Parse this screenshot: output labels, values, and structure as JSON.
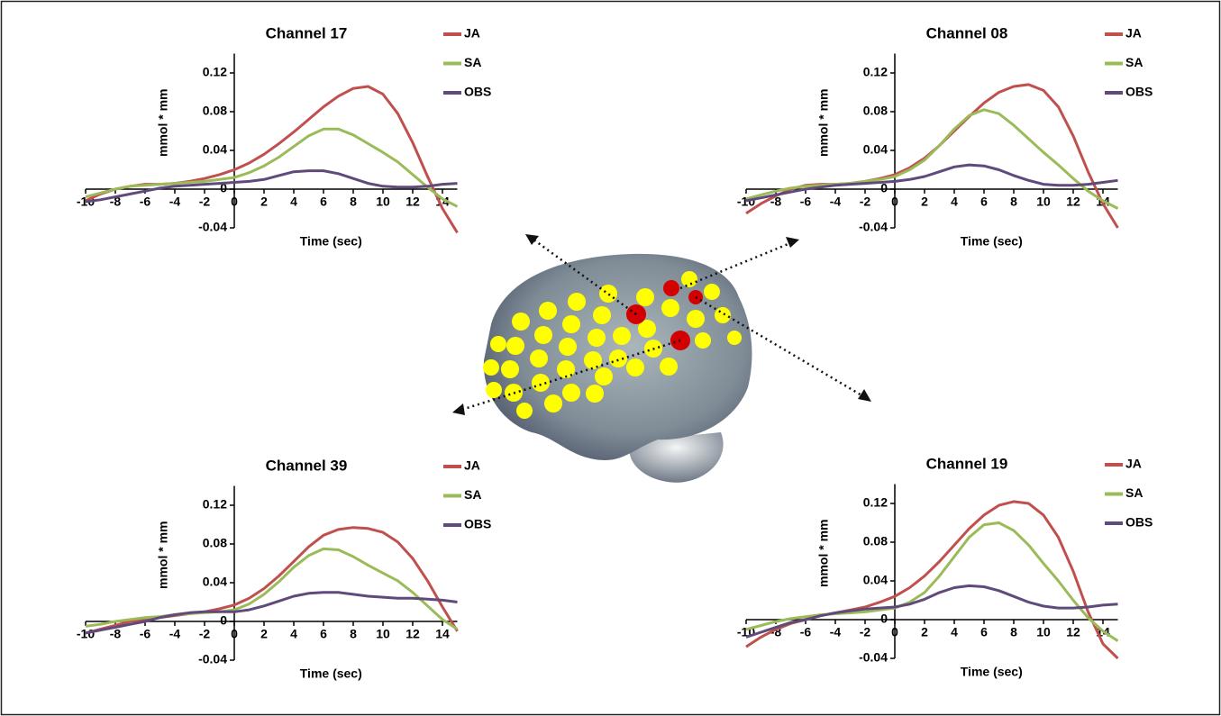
{
  "chart_data": [
    {
      "type": "line",
      "title": "Channel 17",
      "y_label": "mmol * mm",
      "x_label": "Time (sec)",
      "x": [
        -10,
        -9,
        -8,
        -7,
        -6,
        -5,
        -4,
        -3,
        -2,
        -1,
        0,
        1,
        2,
        3,
        4,
        5,
        6,
        7,
        8,
        9,
        10,
        11,
        12,
        13,
        14,
        15
      ],
      "xlim": [
        -10,
        15
      ],
      "xticks": [
        -10,
        -8,
        -6,
        -4,
        -2,
        0,
        2,
        4,
        6,
        8,
        10,
        12,
        14
      ],
      "ylim": [
        -0.04,
        0.14
      ],
      "yticks": [
        -0.04,
        0,
        0.04,
        0.08,
        0.12
      ],
      "series": [
        {
          "name": "JA",
          "color": "#c0504d",
          "values": [
            -0.012,
            -0.005,
            0.0,
            0.003,
            0.005,
            0.005,
            0.006,
            0.008,
            0.011,
            0.015,
            0.02,
            0.027,
            0.036,
            0.047,
            0.059,
            0.072,
            0.085,
            0.096,
            0.104,
            0.106,
            0.098,
            0.078,
            0.048,
            0.013,
            -0.02,
            -0.045
          ]
        },
        {
          "name": "SA",
          "color": "#9bbb59",
          "values": [
            -0.008,
            -0.004,
            0.0,
            0.003,
            0.004,
            0.005,
            0.006,
            0.007,
            0.008,
            0.01,
            0.012,
            0.017,
            0.024,
            0.033,
            0.044,
            0.055,
            0.062,
            0.062,
            0.056,
            0.047,
            0.038,
            0.028,
            0.015,
            0.002,
            -0.01,
            -0.018
          ]
        },
        {
          "name": "OBS",
          "color": "#604a7b",
          "values": [
            -0.013,
            -0.011,
            -0.008,
            -0.005,
            -0.002,
            0.001,
            0.003,
            0.004,
            0.005,
            0.006,
            0.007,
            0.008,
            0.01,
            0.014,
            0.018,
            0.019,
            0.019,
            0.016,
            0.011,
            0.006,
            0.003,
            0.002,
            0.002,
            0.003,
            0.005,
            0.006
          ]
        }
      ]
    },
    {
      "type": "line",
      "title": "Channel 08",
      "y_label": "mmol * mm",
      "x_label": "Time (sec)",
      "x": [
        -10,
        -9,
        -8,
        -7,
        -6,
        -5,
        -4,
        -3,
        -2,
        -1,
        0,
        1,
        2,
        3,
        4,
        5,
        6,
        7,
        8,
        9,
        10,
        11,
        12,
        13,
        14,
        15
      ],
      "xlim": [
        -10,
        15
      ],
      "xticks": [
        -10,
        -8,
        -6,
        -4,
        -2,
        0,
        2,
        4,
        6,
        8,
        10,
        12,
        14
      ],
      "ylim": [
        -0.04,
        0.14
      ],
      "yticks": [
        -0.04,
        0,
        0.04,
        0.08,
        0.12
      ],
      "series": [
        {
          "name": "JA",
          "color": "#c0504d",
          "values": [
            -0.025,
            -0.015,
            -0.007,
            0.0,
            0.004,
            0.005,
            0.005,
            0.006,
            0.008,
            0.011,
            0.015,
            0.022,
            0.032,
            0.045,
            0.06,
            0.075,
            0.089,
            0.1,
            0.106,
            0.108,
            0.102,
            0.085,
            0.055,
            0.018,
            -0.015,
            -0.04
          ]
        },
        {
          "name": "SA",
          "color": "#9bbb59",
          "values": [
            -0.01,
            -0.006,
            -0.002,
            0.001,
            0.003,
            0.004,
            0.005,
            0.006,
            0.008,
            0.01,
            0.013,
            0.02,
            0.03,
            0.045,
            0.062,
            0.076,
            0.082,
            0.078,
            0.066,
            0.052,
            0.038,
            0.025,
            0.011,
            -0.002,
            -0.012,
            -0.02
          ]
        },
        {
          "name": "OBS",
          "color": "#604a7b",
          "values": [
            -0.012,
            -0.009,
            -0.006,
            -0.003,
            0.0,
            0.002,
            0.004,
            0.005,
            0.006,
            0.007,
            0.008,
            0.01,
            0.013,
            0.018,
            0.023,
            0.025,
            0.024,
            0.02,
            0.014,
            0.009,
            0.005,
            0.004,
            0.004,
            0.005,
            0.007,
            0.009
          ]
        }
      ]
    },
    {
      "type": "line",
      "title": "Channel 39",
      "y_label": "mmol * mm",
      "x_label": "Time (sec)",
      "x": [
        -10,
        -9,
        -8,
        -7,
        -6,
        -5,
        -4,
        -3,
        -2,
        -1,
        0,
        1,
        2,
        3,
        4,
        5,
        6,
        7,
        8,
        9,
        10,
        11,
        12,
        13,
        14,
        15
      ],
      "xlim": [
        -10,
        15
      ],
      "xticks": [
        -10,
        -8,
        -6,
        -4,
        -2,
        0,
        2,
        4,
        6,
        8,
        10,
        12,
        14
      ],
      "ylim": [
        -0.04,
        0.14
      ],
      "yticks": [
        -0.04,
        0,
        0.04,
        0.08,
        0.12
      ],
      "series": [
        {
          "name": "JA",
          "color": "#c0504d",
          "values": [
            -0.012,
            -0.008,
            -0.004,
            0.0,
            0.002,
            0.004,
            0.006,
            0.008,
            0.01,
            0.013,
            0.017,
            0.024,
            0.034,
            0.047,
            0.062,
            0.077,
            0.089,
            0.095,
            0.097,
            0.096,
            0.092,
            0.082,
            0.065,
            0.042,
            0.015,
            -0.01
          ]
        },
        {
          "name": "SA",
          "color": "#9bbb59",
          "values": [
            -0.005,
            -0.003,
            0.0,
            0.002,
            0.004,
            0.005,
            0.007,
            0.008,
            0.009,
            0.01,
            0.012,
            0.018,
            0.028,
            0.041,
            0.056,
            0.068,
            0.075,
            0.074,
            0.067,
            0.058,
            0.05,
            0.042,
            0.03,
            0.016,
            0.002,
            -0.008
          ]
        },
        {
          "name": "OBS",
          "color": "#604a7b",
          "values": [
            -0.012,
            -0.009,
            -0.006,
            -0.003,
            0.0,
            0.004,
            0.007,
            0.009,
            0.01,
            0.01,
            0.01,
            0.012,
            0.016,
            0.021,
            0.026,
            0.029,
            0.03,
            0.03,
            0.028,
            0.026,
            0.025,
            0.024,
            0.024,
            0.023,
            0.022,
            0.02
          ]
        }
      ]
    },
    {
      "type": "line",
      "title": "Channel 19",
      "y_label": "mmol * mm",
      "x_label": "Time (sec)",
      "x": [
        -10,
        -9,
        -8,
        -7,
        -6,
        -5,
        -4,
        -3,
        -2,
        -1,
        0,
        1,
        2,
        3,
        4,
        5,
        6,
        7,
        8,
        9,
        10,
        11,
        12,
        13,
        14,
        15
      ],
      "xlim": [
        -10,
        15
      ],
      "xticks": [
        -10,
        -8,
        -6,
        -4,
        -2,
        0,
        2,
        4,
        6,
        8,
        10,
        12,
        14
      ],
      "ylim": [
        -0.04,
        0.14
      ],
      "yticks": [
        -0.04,
        0,
        0.04,
        0.08,
        0.12
      ],
      "series": [
        {
          "name": "JA",
          "color": "#c0504d",
          "values": [
            -0.028,
            -0.018,
            -0.01,
            -0.004,
            0.0,
            0.004,
            0.007,
            0.01,
            0.013,
            0.018,
            0.024,
            0.033,
            0.045,
            0.06,
            0.077,
            0.094,
            0.108,
            0.118,
            0.122,
            0.12,
            0.108,
            0.085,
            0.05,
            0.008,
            -0.025,
            -0.04
          ]
        },
        {
          "name": "SA",
          "color": "#9bbb59",
          "values": [
            -0.01,
            -0.006,
            -0.002,
            0.001,
            0.003,
            0.005,
            0.006,
            0.007,
            0.008,
            0.01,
            0.012,
            0.018,
            0.028,
            0.045,
            0.065,
            0.085,
            0.098,
            0.1,
            0.092,
            0.077,
            0.058,
            0.04,
            0.02,
            0.002,
            -0.012,
            -0.022
          ]
        },
        {
          "name": "OBS",
          "color": "#604a7b",
          "values": [
            -0.018,
            -0.013,
            -0.008,
            -0.003,
            0.0,
            0.004,
            0.007,
            0.009,
            0.011,
            0.012,
            0.013,
            0.016,
            0.021,
            0.028,
            0.033,
            0.035,
            0.034,
            0.03,
            0.024,
            0.018,
            0.014,
            0.012,
            0.012,
            0.013,
            0.015,
            0.016
          ]
        }
      ]
    }
  ]
}
